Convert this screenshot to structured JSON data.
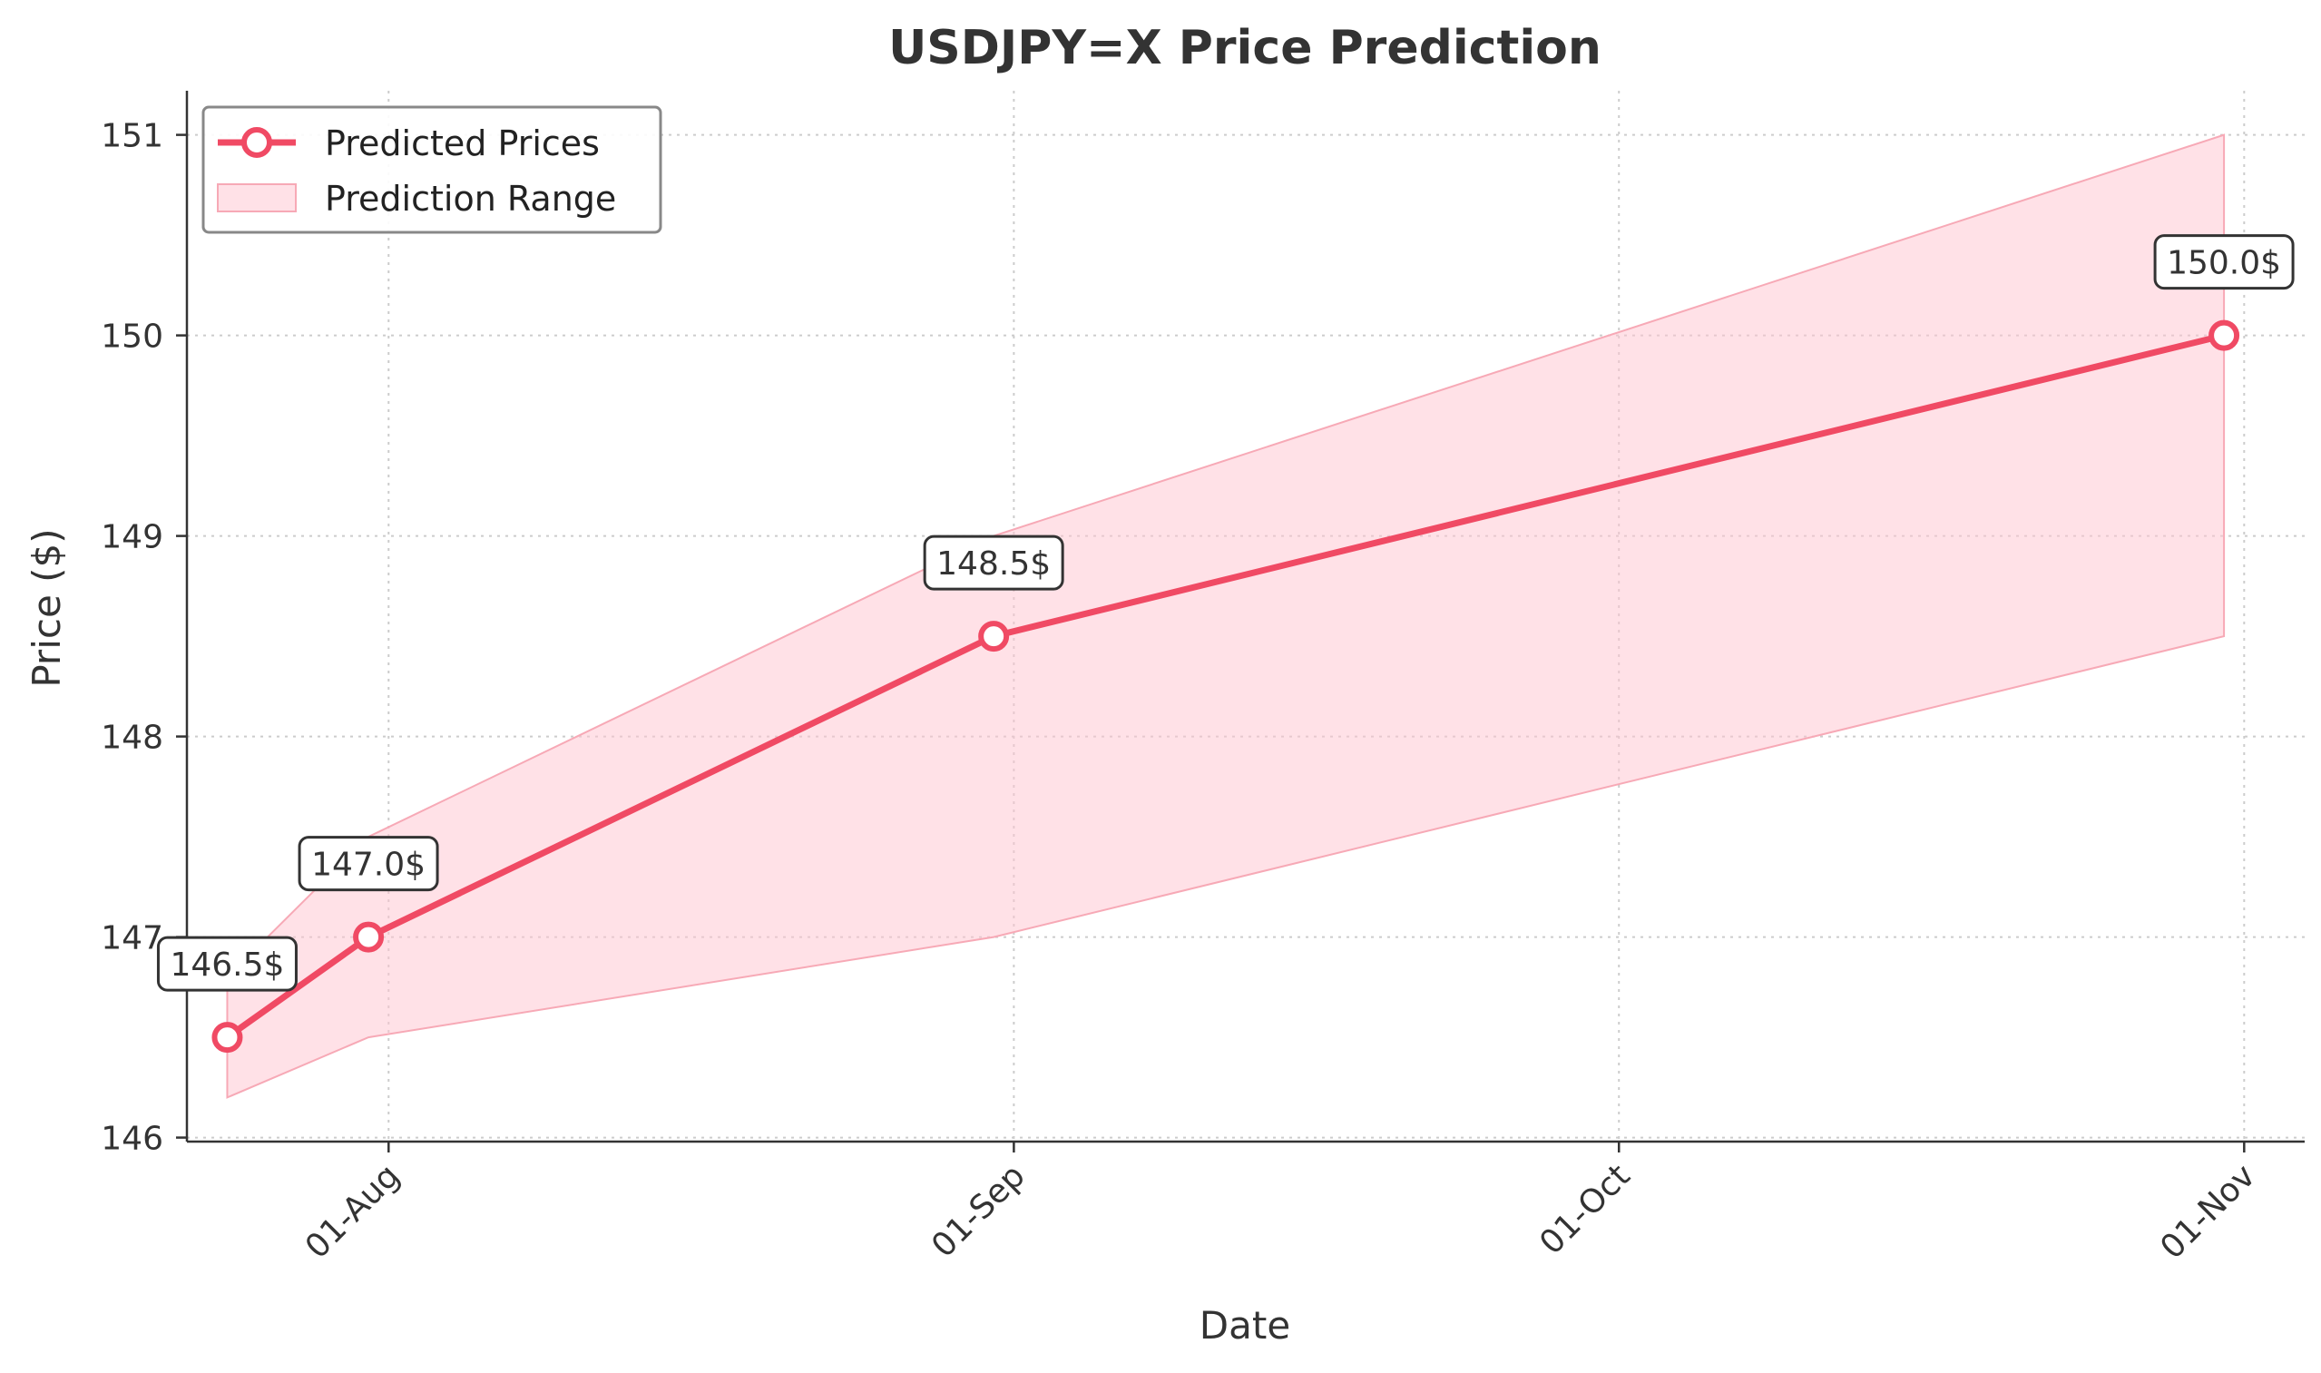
{
  "colors": {
    "line": "#f04a64",
    "band_fill": "#ffc4cf",
    "band_stroke": "#f7a9b6",
    "axis": "#333333",
    "grid": "#cccccc",
    "text": "#333333"
  },
  "chart_data": {
    "type": "line",
    "title": "USDJPY=X Price Prediction",
    "xlabel": "Date",
    "ylabel": "Price ($)",
    "ylim": [
      145.98,
      151.22
    ],
    "grid": true,
    "legend_position": "top-left",
    "x_ticks": [
      "2024-08-01",
      "2024-09-01",
      "2024-10-01",
      "2024-11-01"
    ],
    "x_tick_labels": [
      "01-Aug",
      "01-Sep",
      "01-Oct",
      "01-Nov"
    ],
    "y_ticks": [
      146,
      147,
      148,
      149,
      150,
      151
    ],
    "series": [
      {
        "name": "Predicted Prices",
        "x": [
          "2024-07-24",
          "2024-07-31",
          "2024-08-31",
          "2024-10-31"
        ],
        "values": [
          146.5,
          147.0,
          148.5,
          150.0
        ],
        "annotations": [
          "146.5$",
          "147.0$",
          "148.5$",
          "150.0$"
        ]
      }
    ],
    "range": {
      "name": "Prediction Range",
      "x": [
        "2024-07-24",
        "2024-07-31",
        "2024-08-31",
        "2024-10-31"
      ],
      "lower": [
        146.2,
        146.5,
        147.0,
        148.5
      ],
      "upper": [
        146.8,
        147.5,
        149.0,
        151.0
      ]
    }
  }
}
